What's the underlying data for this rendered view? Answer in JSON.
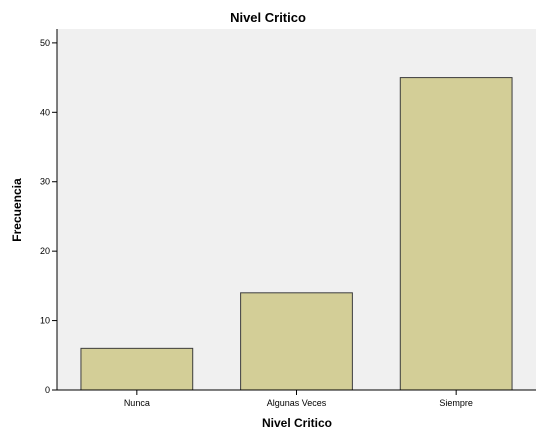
{
  "chart_data": {
    "type": "bar",
    "title": "Nivel Critico",
    "xlabel": "Nivel Critico",
    "ylabel": "Frecuencia",
    "categories": [
      "Nunca",
      "Algunas Veces",
      "Siempre"
    ],
    "values": [
      6,
      14,
      45
    ],
    "ylim": [
      0,
      52
    ],
    "yticks": [
      0,
      10,
      20,
      30,
      40,
      50
    ],
    "grid": false,
    "legend": "none",
    "colors": {
      "bar_fill": "#D3CE97",
      "bar_stroke": "#3C3C3C",
      "plot_background": "#F0F0F0",
      "axis": "#000000"
    }
  }
}
